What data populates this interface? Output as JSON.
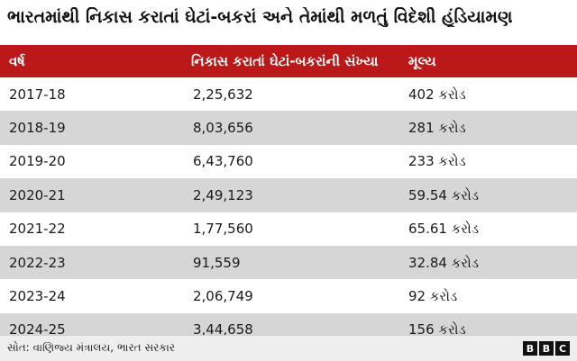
{
  "title": "ભારતમાંથી નિકાસ કરાતાં ઘેટાં-બકરાં અને તેમાંથી મળતું વિદેશી હૂંડિયામણ",
  "colors": {
    "header_bg": "#bb1919",
    "alt_row_bg": "#d6d6d6",
    "header_text": "#ffffff"
  },
  "table": {
    "headers": [
      "વર્ષ",
      "નિકાસ કરાતાં ઘેટાં-બકરાંની સંખ્યા",
      "મૂલ્ય"
    ],
    "rows": [
      [
        "2017-18",
        "2,25,632",
        "402 કરોડ"
      ],
      [
        "2018-19",
        "8,03,656",
        "281 કરોડ"
      ],
      [
        "2019-20",
        "6,43,760",
        "233 કરોડ"
      ],
      [
        "2020-21",
        "2,49,123",
        "59.54 કરોડ"
      ],
      [
        "2021-22",
        "1,77,560",
        "65.61 કરોડ"
      ],
      [
        "2022-23",
        "91,559",
        "32.84 કરોડ"
      ],
      [
        "2023-24",
        "2,06,749",
        "92 કરોડ"
      ],
      [
        "2024-25",
        "3,44,658",
        "156 કરોડ"
      ]
    ]
  },
  "footer": {
    "source": "સોત: વાણિજ્ય મંત્રાલય, ભારત સરકાર",
    "logo_letters": [
      "B",
      "B",
      "C"
    ]
  }
}
